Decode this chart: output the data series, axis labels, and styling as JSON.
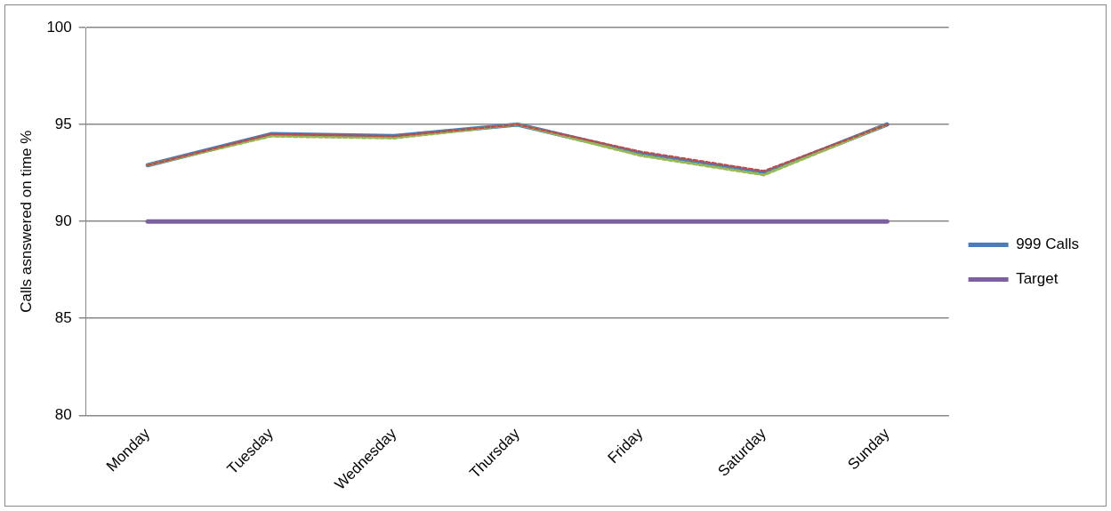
{
  "chart_data": {
    "type": "line",
    "ylabel": "Calls asnswered on time %",
    "categories": [
      "Monday",
      "Tuesday",
      "Wednesday",
      "Thursday",
      "Friday",
      "Saturday",
      "Sunday"
    ],
    "series": [
      {
        "name": "999 Calls",
        "color": "#4a7ebb",
        "values": [
          92.9,
          94.5,
          94.4,
          95,
          93.5,
          92.5,
          95
        ]
      },
      {
        "color": "#be4b48",
        "line_style": "dashed",
        "values": [
          92.9,
          94.5,
          94.4,
          95,
          93.6,
          92.6,
          95
        ]
      },
      {
        "color": "#98b954",
        "line_style": "dashed",
        "values": [
          92.9,
          94.4,
          94.3,
          95,
          93.4,
          92.4,
          95
        ]
      },
      {
        "name": "Target",
        "color": "#7d60a0",
        "values": [
          90,
          90,
          90,
          90,
          90,
          90,
          90
        ]
      }
    ],
    "ylim": [
      80,
      100
    ],
    "yticks": [
      80,
      85,
      90,
      95,
      100
    ],
    "grid": "y",
    "legend": "right",
    "marker": "none"
  }
}
